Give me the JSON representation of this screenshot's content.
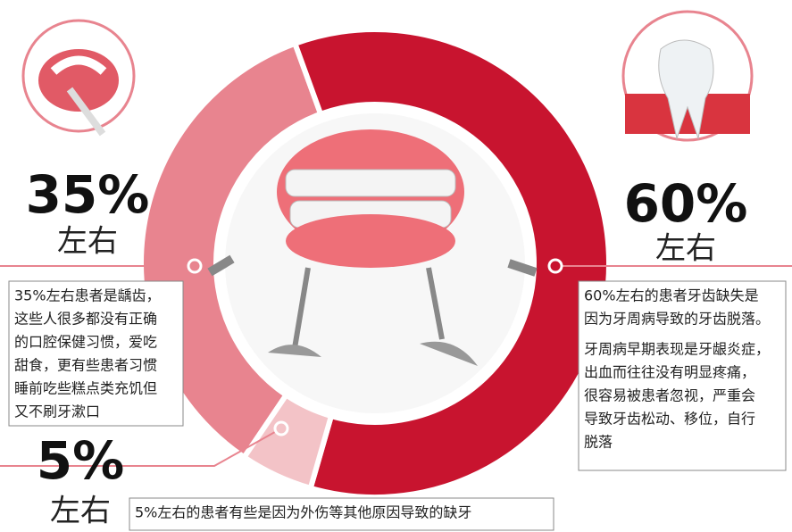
{
  "chart_data": {
    "type": "pie",
    "values": [
      35,
      60,
      5
    ],
    "value_labels": [
      "35%",
      "60%",
      "5%"
    ],
    "value_notes": [
      "左右",
      "左右",
      "左右"
    ],
    "colors": [
      "#e8848f",
      "#c8142f",
      "#f3c3c7"
    ],
    "annotations": [
      [
        [
          "35%左右患者是龋齿，",
          "这些人很多都没有正确",
          "的口腔保健习惯，爱吃",
          "甜食，更有些患者习惯",
          "睡前吃些糕点类充饥但",
          "又不刷牙漱口"
        ]
      ],
      [
        [
          "60%左右的患者牙齿缺失是",
          "因为牙周病导致的牙齿脱落。"
        ],
        [
          "牙周病早期表现是牙龈炎症，",
          "出血而往往没有明显疼痛，",
          "很容易被患者忽视，严重会",
          "导致牙齿松动、移位，自行",
          "脱落"
        ]
      ],
      [
        [
          "5%左右的患者有些是因为外伤等其他原因导致的缺牙"
        ]
      ]
    ]
  }
}
